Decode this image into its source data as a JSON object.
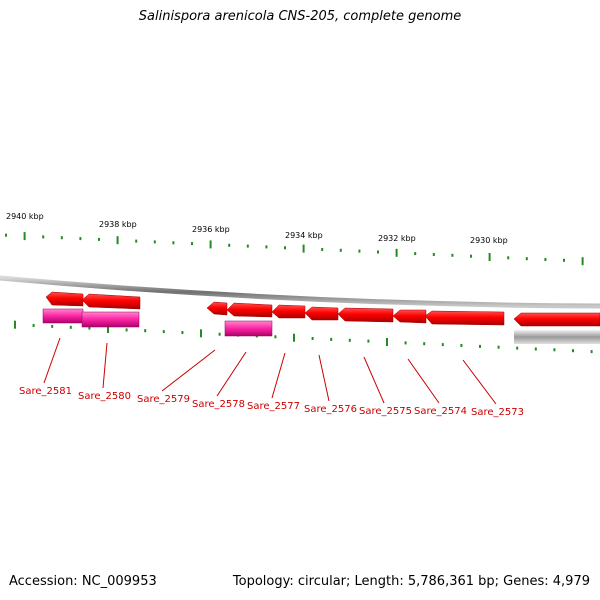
{
  "title": "Salinispora arenicola CNS-205, complete genome",
  "footer": {
    "accession": "Accession: NC_009953",
    "summary": "Topology: circular; Length: 5,786,361 bp; Genes: 4,979"
  },
  "colors": {
    "gene": "#ff0000",
    "gene_shadow": "#b80000",
    "cds": "#ff33aa",
    "backbone": "#808080",
    "tick": "#228b22",
    "label": "#cc0000"
  },
  "scale_labels": [
    "2940 kbp",
    "2938 kbp",
    "2936 kbp",
    "2934 kbp",
    "2932 kbp",
    "2930 kbp"
  ],
  "genes": [
    {
      "name": "Sare_2581"
    },
    {
      "name": "Sare_2580"
    },
    {
      "name": "Sare_2579"
    },
    {
      "name": "Sare_2578"
    },
    {
      "name": "Sare_2577"
    },
    {
      "name": "Sare_2576"
    },
    {
      "name": "Sare_2575"
    },
    {
      "name": "Sare_2574"
    },
    {
      "name": "Sare_2573"
    }
  ]
}
